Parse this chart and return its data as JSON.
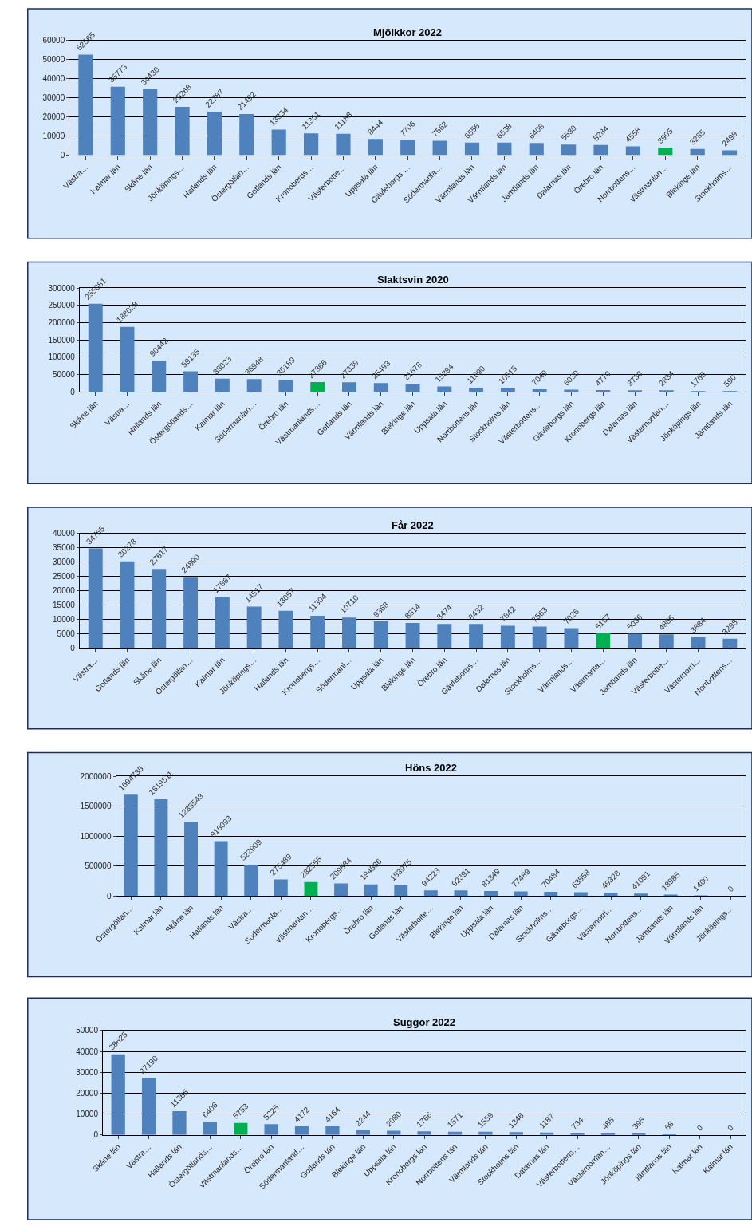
{
  "chart_data": [
    {
      "type": "bar",
      "title": "Mjölkkor 2022",
      "categories": [
        "Västra…",
        "Kalmar län",
        "Skåne län",
        "Jönköpings…",
        "Hallands län",
        "Östergötlan…",
        "Gotlands län",
        "Kronobergs…",
        "Västerbotte…",
        "Uppsala län",
        "Gävleborgs …",
        "Södermanla…",
        "Värmlands län",
        "Värmlands län",
        "Jämtlands län",
        "Dalarnas län",
        "Örebro län",
        "Norrbottens…",
        "Västmanlan…",
        "Blekinge län",
        "Stockholms…"
      ],
      "values": [
        52565,
        35773,
        34430,
        25268,
        22787,
        21492,
        13334,
        11351,
        11188,
        8444,
        7706,
        7562,
        6556,
        6538,
        6408,
        5530,
        5284,
        4558,
        3905,
        3285,
        2499
      ],
      "colors": [
        "#4f81bd",
        "#4f81bd",
        "#4f81bd",
        "#4f81bd",
        "#4f81bd",
        "#4f81bd",
        "#4f81bd",
        "#4f81bd",
        "#4f81bd",
        "#4f81bd",
        "#4f81bd",
        "#4f81bd",
        "#4f81bd",
        "#4f81bd",
        "#4f81bd",
        "#4f81bd",
        "#4f81bd",
        "#4f81bd",
        "#00b050",
        "#4f81bd",
        "#4f81bd"
      ],
      "ylim": [
        0,
        60000
      ],
      "yticks": [
        0,
        10000,
        20000,
        30000,
        40000,
        50000,
        60000
      ],
      "grid": "y",
      "data_labels": true
    },
    {
      "type": "bar",
      "title": "Slaktsvin 2020",
      "categories": [
        "Skåne län",
        "Västra…",
        "Hallands län",
        "Östergötlands…",
        "Kalmar län",
        "Södermanlan…",
        "Örebro län",
        "Västmanlands…",
        "Gotlands län",
        "Värmlands län",
        "Blekinge län",
        "Uppsala län",
        "Norrbottens län",
        "Stockholms län",
        "Västerbottens…",
        "Gävleborgs län",
        "Kronobergs län",
        "Dalarnas län",
        "Västernorrlan…",
        "Jönköpings län",
        "Jämtlands län"
      ],
      "values": [
        255081,
        188028,
        90442,
        59135,
        38023,
        36948,
        35189,
        27866,
        27339,
        25493,
        21678,
        15394,
        11690,
        10515,
        7049,
        6030,
        4770,
        3730,
        2834,
        1765,
        590
      ],
      "colors": [
        "#4f81bd",
        "#4f81bd",
        "#4f81bd",
        "#4f81bd",
        "#4f81bd",
        "#4f81bd",
        "#4f81bd",
        "#00b050",
        "#4f81bd",
        "#4f81bd",
        "#4f81bd",
        "#4f81bd",
        "#4f81bd",
        "#4f81bd",
        "#4f81bd",
        "#4f81bd",
        "#4f81bd",
        "#4f81bd",
        "#4f81bd",
        "#4f81bd",
        "#4f81bd"
      ],
      "ylim": [
        0,
        300000
      ],
      "yticks": [
        0,
        50000,
        100000,
        150000,
        200000,
        250000,
        300000
      ],
      "grid": "y",
      "data_labels": true
    },
    {
      "type": "bar",
      "title": "Får 2022",
      "categories": [
        "Västra…",
        "Gotlands län",
        "Skåne län",
        "Östergötlan…",
        "Kalmar län",
        "Jönköpings…",
        "Hallands län",
        "Kronobergs…",
        "Södermanl…",
        "Uppsala län",
        "Blekinge län",
        "Örebro län",
        "Gävleborgs…",
        "Dalarnas län",
        "Stockholms…",
        "Värmlands…",
        "Västmanla…",
        "Jämtlands län",
        "Västerbotte…",
        "Västernorrl…",
        "Norrbottens…"
      ],
      "values": [
        34765,
        30278,
        27617,
        24890,
        17867,
        14517,
        13057,
        11304,
        10710,
        9368,
        8814,
        8474,
        8432,
        7842,
        7563,
        7026,
        5167,
        5036,
        4866,
        3884,
        3298
      ],
      "colors": [
        "#4f81bd",
        "#4f81bd",
        "#4f81bd",
        "#4f81bd",
        "#4f81bd",
        "#4f81bd",
        "#4f81bd",
        "#4f81bd",
        "#4f81bd",
        "#4f81bd",
        "#4f81bd",
        "#4f81bd",
        "#4f81bd",
        "#4f81bd",
        "#4f81bd",
        "#4f81bd",
        "#00b050",
        "#4f81bd",
        "#4f81bd",
        "#4f81bd",
        "#4f81bd"
      ],
      "ylim": [
        0,
        40000
      ],
      "yticks": [
        0,
        5000,
        10000,
        15000,
        20000,
        25000,
        30000,
        35000,
        40000
      ],
      "grid": "y",
      "data_labels": true
    },
    {
      "type": "bar",
      "title": "Höns 2022",
      "categories": [
        "Östergötlan…",
        "Kalmar län",
        "Skåne län",
        "Hallands län",
        "Västra…",
        "Södermanla…",
        "Västmanlan…",
        "Kronobergs…",
        "Örebro län",
        "Gotlands län",
        "Västerbotte…",
        "Blekinge län",
        "Uppsala län",
        "Dalarnas län",
        "Stockholms…",
        "Gävleborgs…",
        "Västernorrl…",
        "Norrbottens…",
        "Jämtlands län",
        "Värmlands län",
        "Jönköpings…"
      ],
      "values": [
        1694735,
        1619511,
        1235543,
        916093,
        522909,
        275489,
        232555,
        209884,
        194586,
        183975,
        94223,
        92391,
        81349,
        77489,
        70484,
        63558,
        49328,
        41091,
        18985,
        1400,
        0
      ],
      "colors": [
        "#4f81bd",
        "#4f81bd",
        "#4f81bd",
        "#4f81bd",
        "#4f81bd",
        "#4f81bd",
        "#00b050",
        "#4f81bd",
        "#4f81bd",
        "#4f81bd",
        "#4f81bd",
        "#4f81bd",
        "#4f81bd",
        "#4f81bd",
        "#4f81bd",
        "#4f81bd",
        "#4f81bd",
        "#4f81bd",
        "#4f81bd",
        "#4f81bd",
        "#4f81bd"
      ],
      "ylim": [
        0,
        2000000
      ],
      "yticks": [
        0,
        500000,
        1000000,
        1500000,
        2000000
      ],
      "grid": "y",
      "data_labels": true
    },
    {
      "type": "bar",
      "title": "Suggor 2022",
      "categories": [
        "Skåne län",
        "Västra…",
        "Hallands län",
        "Östergötlands…",
        "Västmanlands…",
        "Örebro län",
        "Södermanland…",
        "Gotlands län",
        "Blekinge län",
        "Uppsala län",
        "Kronobergs län",
        "Norrbottens län",
        "Värmlands län",
        "Stockholms län",
        "Dalarnas län",
        "Västerbottens…",
        "Västernorrlan…",
        "Jönköpings län",
        "Jämtlands län",
        "Kalmar län",
        "Kalmar län"
      ],
      "values": [
        38625,
        27190,
        11365,
        6406,
        5753,
        5225,
        4172,
        4164,
        2244,
        2080,
        1766,
        1571,
        1559,
        1346,
        1187,
        734,
        485,
        395,
        68,
        0,
        0
      ],
      "colors": [
        "#4f81bd",
        "#4f81bd",
        "#4f81bd",
        "#4f81bd",
        "#00b050",
        "#4f81bd",
        "#4f81bd",
        "#4f81bd",
        "#4f81bd",
        "#4f81bd",
        "#4f81bd",
        "#4f81bd",
        "#4f81bd",
        "#4f81bd",
        "#4f81bd",
        "#4f81bd",
        "#4f81bd",
        "#4f81bd",
        "#4f81bd",
        "#4f81bd",
        "#4f81bd"
      ],
      "ylim": [
        0,
        50000
      ],
      "yticks": [
        0,
        10000,
        20000,
        30000,
        40000,
        50000
      ],
      "grid": "y",
      "data_labels": true
    }
  ]
}
